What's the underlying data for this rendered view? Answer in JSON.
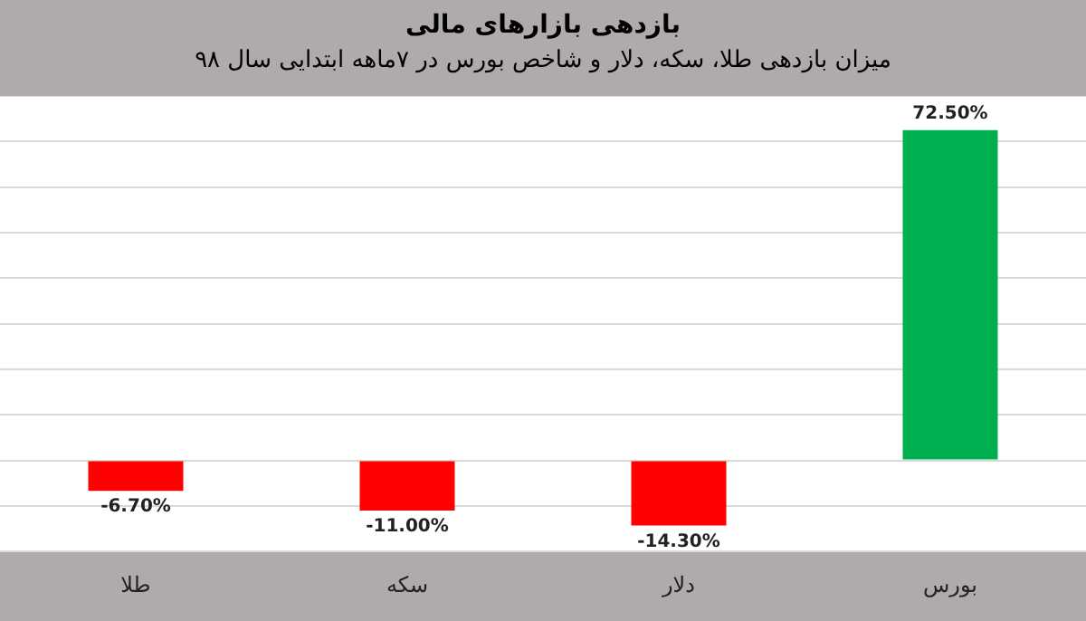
{
  "chart_data": {
    "type": "bar",
    "title": "بازدهی بازارهای مالی",
    "subtitle": "میزان بازدهی طلا، سکه، دلار و شاخص بورس در ۷ماهه ابتدایی سال ۹۸",
    "categories": [
      "طلا",
      "سکه",
      "دلار",
      "بورس"
    ],
    "values": [
      -6.7,
      -11,
      -14.3,
      72.5
    ],
    "colors": [
      "#ff0000",
      "#ff0000",
      "#ff0000",
      "#00b050"
    ],
    "value_labels": [
      "-6.70%",
      "-11.00%",
      "-14.30%",
      "72.50%"
    ],
    "ylim": [
      -20,
      80
    ],
    "yticks": [
      {
        "value": -20,
        "label": null
      },
      {
        "value": -10,
        "label": null
      },
      {
        "value": 0,
        "label": null
      },
      {
        "value": 10,
        "label": null
      },
      {
        "value": 20,
        "label": null
      },
      {
        "value": 30,
        "label": null
      },
      {
        "value": 40,
        "label": null
      },
      {
        "value": 50,
        "label": null
      },
      {
        "value": 60,
        "label": null
      },
      {
        "value": 70,
        "label": null
      },
      {
        "value": 80,
        "label": null
      }
    ],
    "tick_labels": "x",
    "grid": "y",
    "legend": false
  }
}
